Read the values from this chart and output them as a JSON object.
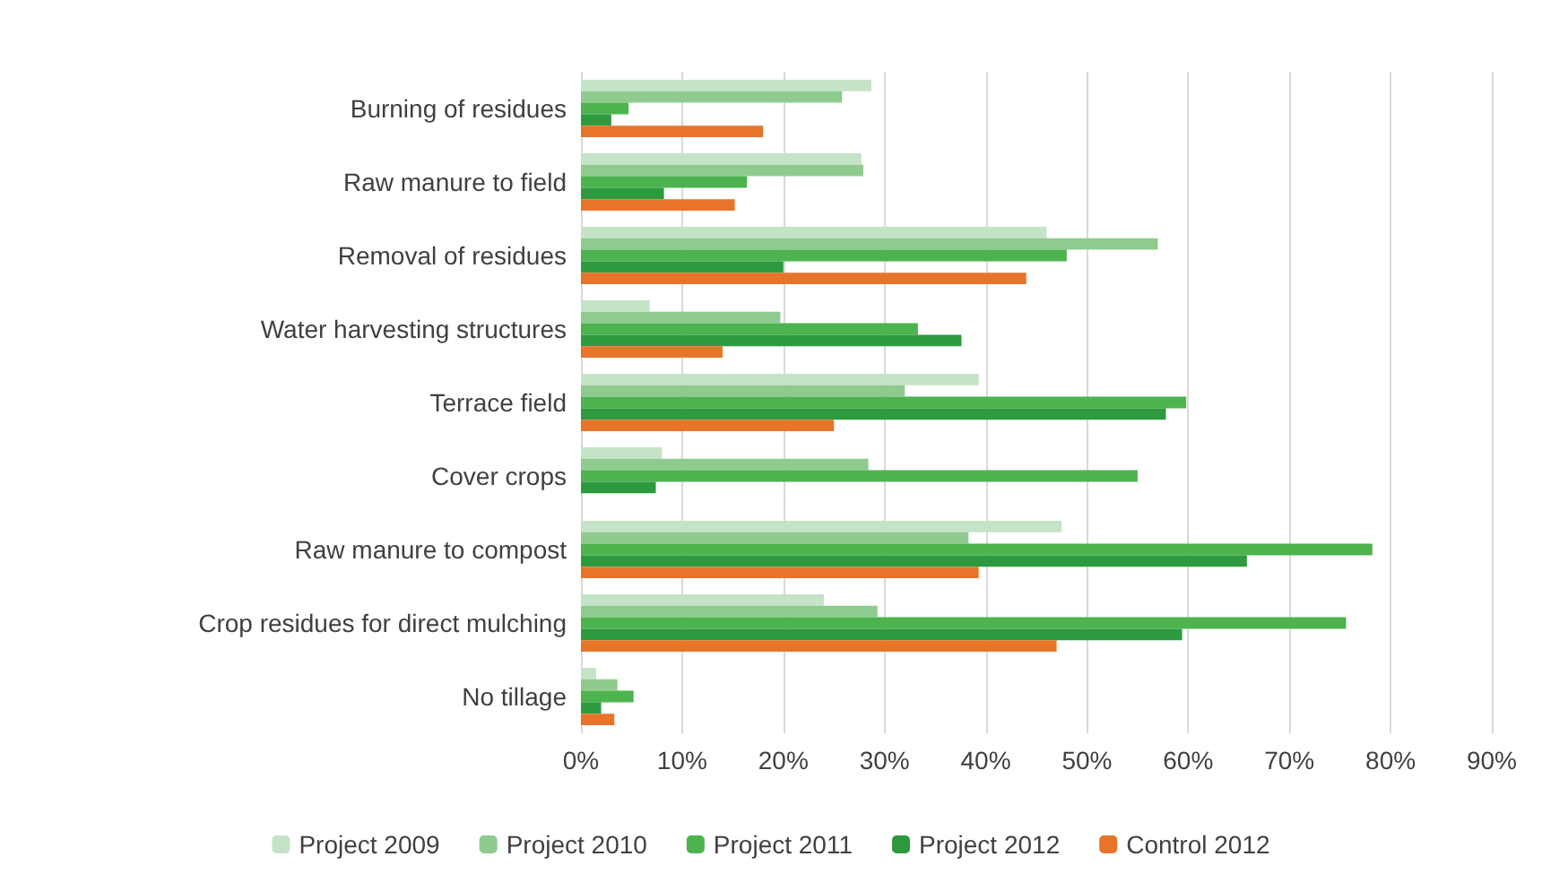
{
  "chart_data": {
    "type": "bar",
    "orientation": "horizontal",
    "categories": [
      "Burning of residues",
      "Raw manure to field",
      "Removal of residues",
      "Water harvesting structures",
      "Terrace field",
      "Cover crops",
      "Raw manure to compost",
      "Crop residues for direct mulching",
      "No tillage"
    ],
    "series": [
      {
        "name": "Project 2009",
        "color": "#c5e3c6",
        "values": [
          28.7,
          27.7,
          46,
          6.8,
          39.3,
          8,
          47.5,
          24,
          1.5
        ]
      },
      {
        "name": "Project 2010",
        "color": "#8fcb8f",
        "values": [
          25.8,
          27.9,
          57,
          19.7,
          32,
          28.4,
          38.3,
          29.3,
          3.6
        ]
      },
      {
        "name": "Project 2011",
        "color": "#4db34f",
        "values": [
          4.7,
          16.4,
          48,
          33.3,
          59.8,
          55,
          78.2,
          75.6,
          5.2
        ]
      },
      {
        "name": "Project 2012",
        "color": "#2e9a3f",
        "values": [
          3,
          8.2,
          20,
          37.6,
          57.8,
          7.4,
          65.8,
          59.4,
          2
        ]
      },
      {
        "name": "Control 2012",
        "color": "#e8742a",
        "values": [
          18,
          15.2,
          44,
          14,
          25,
          null,
          39.3,
          47,
          3.3
        ]
      }
    ],
    "xlim": [
      0,
      90
    ],
    "xticks": [
      {
        "value": 0,
        "label": "0%"
      },
      {
        "value": 10,
        "label": "10%"
      },
      {
        "value": 20,
        "label": "20%"
      },
      {
        "value": 30,
        "label": "30%"
      },
      {
        "value": 40,
        "label": "40%"
      },
      {
        "value": 50,
        "label": "50%"
      },
      {
        "value": 60,
        "label": "60%"
      },
      {
        "value": 70,
        "label": "70%"
      },
      {
        "value": 80,
        "label": "80%"
      },
      {
        "value": 90,
        "label": "90%"
      }
    ],
    "grid": "x",
    "legend": "bottom"
  }
}
